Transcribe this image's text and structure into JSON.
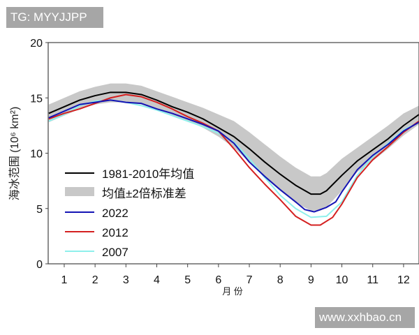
{
  "watermarks": {
    "top_left": "TG: MYYJJPP",
    "bottom_right": "www.xxhbao.cn"
  },
  "chart_data": {
    "type": "line",
    "title": "",
    "xlabel": "月 份",
    "ylabel": "海冰范围（10⁶ km²）",
    "ylabel_main": "海冰范围",
    "ylabel_unit": "(10⁶ km²)",
    "xlim": [
      0.48,
      12.5
    ],
    "ylim": [
      0,
      20
    ],
    "xticks": [
      1,
      2,
      3,
      4,
      5,
      6,
      7,
      8,
      9,
      10,
      11,
      12
    ],
    "yticks": [
      0,
      5,
      10,
      15,
      20
    ],
    "grid": false,
    "legend_placement": "lower-left",
    "band": {
      "name": "均值±2倍标准差",
      "color": "#c8c8c8",
      "x": [
        0.5,
        1,
        1.5,
        2,
        2.5,
        3,
        3.5,
        4,
        4.5,
        5,
        5.5,
        6,
        6.5,
        7,
        7.5,
        8,
        8.5,
        9,
        9.3,
        9.5,
        10,
        10.5,
        11,
        11.5,
        12,
        12.5
      ],
      "upper": [
        14.4,
        15.0,
        15.6,
        16.0,
        16.3,
        16.3,
        16.1,
        15.6,
        15.1,
        14.6,
        14.1,
        13.5,
        12.9,
        11.9,
        10.8,
        9.7,
        8.7,
        7.9,
        7.9,
        8.2,
        9.5,
        10.5,
        11.5,
        12.5,
        13.6,
        14.3
      ],
      "lower": [
        12.8,
        13.4,
        14.0,
        14.4,
        14.6,
        14.6,
        14.4,
        13.9,
        13.4,
        12.9,
        12.3,
        11.5,
        10.5,
        9.2,
        7.8,
        6.6,
        5.5,
        4.8,
        4.8,
        5.1,
        6.6,
        8.3,
        9.3,
        10.4,
        11.6,
        12.6
      ]
    },
    "series": [
      {
        "name": "1981-2010年均值",
        "color": "#000000",
        "x": [
          0.5,
          1,
          1.5,
          2,
          2.5,
          3,
          3.5,
          4,
          4.5,
          5,
          5.5,
          6,
          6.5,
          7,
          7.5,
          8,
          8.5,
          9,
          9.3,
          9.5,
          10,
          10.5,
          11,
          11.5,
          12,
          12.5
        ],
        "values": [
          13.6,
          14.2,
          14.8,
          15.2,
          15.5,
          15.5,
          15.3,
          14.8,
          14.2,
          13.7,
          13.1,
          12.3,
          11.5,
          10.4,
          9.2,
          8.1,
          7.1,
          6.3,
          6.3,
          6.6,
          8.0,
          9.3,
          10.3,
          11.3,
          12.5,
          13.5
        ]
      },
      {
        "name": "2022",
        "color": "#1414b4",
        "x": [
          0.5,
          1,
          1.5,
          2,
          2.5,
          3,
          3.5,
          4,
          4.5,
          5,
          5.5,
          6,
          6.5,
          7,
          7.5,
          8,
          8.5,
          8.8,
          9.1,
          9.5,
          9.8,
          10,
          10.5,
          11,
          11.5,
          12,
          12.5
        ],
        "values": [
          13.2,
          13.8,
          14.4,
          14.6,
          14.8,
          14.6,
          14.5,
          14.0,
          13.6,
          13.1,
          12.6,
          12.0,
          10.9,
          9.2,
          7.9,
          6.7,
          5.6,
          4.9,
          4.7,
          5.1,
          5.6,
          6.5,
          8.5,
          9.8,
          10.8,
          12.0,
          12.8
        ]
      },
      {
        "name": "2012",
        "color": "#d42020",
        "x": [
          0.5,
          1,
          1.5,
          2,
          2.5,
          3,
          3.5,
          4,
          4.5,
          5,
          5.5,
          6,
          6.5,
          7,
          7.5,
          8,
          8.5,
          9,
          9.3,
          9.7,
          10,
          10.5,
          11,
          11.5,
          12,
          12.5
        ],
        "values": [
          13.1,
          13.6,
          14.0,
          14.5,
          15.0,
          15.3,
          15.1,
          14.6,
          14.0,
          13.3,
          12.7,
          12.0,
          10.4,
          8.7,
          7.2,
          5.8,
          4.3,
          3.5,
          3.5,
          4.2,
          5.4,
          7.8,
          9.4,
          10.6,
          11.9,
          12.9
        ]
      },
      {
        "name": "2007",
        "color": "#8ef0ec",
        "x": [
          0.5,
          1,
          1.5,
          2,
          2.5,
          3,
          3.5,
          4,
          4.5,
          5,
          5.5,
          6,
          6.5,
          7,
          7.5,
          8,
          8.5,
          9,
          9.5,
          10,
          10.5,
          11,
          11.5,
          12,
          12.5
        ],
        "values": [
          12.9,
          13.5,
          14.3,
          14.7,
          14.8,
          14.6,
          14.3,
          13.9,
          13.4,
          12.9,
          12.4,
          11.8,
          11.0,
          9.5,
          7.8,
          6.2,
          5.0,
          4.2,
          4.3,
          5.6,
          8.0,
          9.7,
          10.9,
          12.1,
          12.8
        ]
      }
    ]
  }
}
